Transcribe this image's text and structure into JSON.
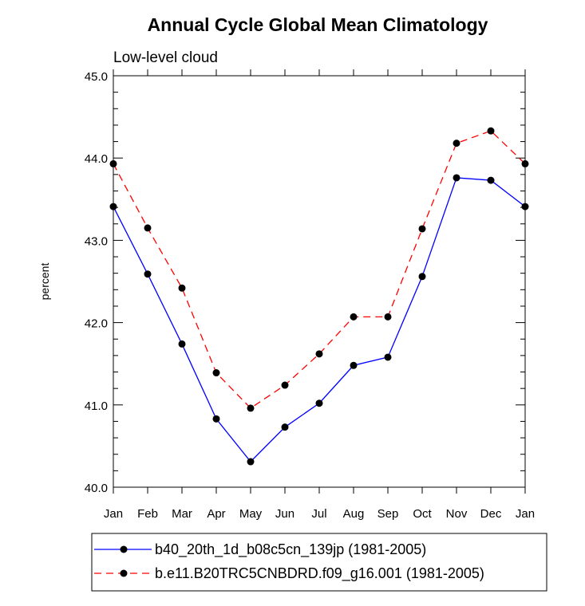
{
  "chart_data": {
    "type": "line",
    "title": "Annual Cycle Global Mean Climatology",
    "subtitle": "Low-level cloud",
    "xlabel": "",
    "ylabel": "percent",
    "ylim": [
      40.0,
      45.0
    ],
    "yticks": [
      "40.0",
      "41.0",
      "42.0",
      "43.0",
      "44.0",
      "45.0"
    ],
    "categories": [
      "Jan",
      "Feb",
      "Mar",
      "Apr",
      "May",
      "Jun",
      "Jul",
      "Aug",
      "Sep",
      "Oct",
      "Nov",
      "Dec",
      "Jan"
    ],
    "legend_position": "bottom",
    "series": [
      {
        "name": "b40_20th_1d_b08c5cn_139jp (1981-2005)",
        "color": "#0000ff",
        "line_style": "solid",
        "values": [
          43.41,
          42.59,
          41.74,
          40.83,
          40.31,
          40.73,
          41.02,
          41.48,
          41.58,
          42.56,
          43.76,
          43.73,
          43.41
        ]
      },
      {
        "name": "b.e11.B20TRC5CNBDRD.f09_g16.001 (1981-2005)",
        "color": "#ff0000",
        "line_style": "dashed",
        "values": [
          43.93,
          43.15,
          42.42,
          41.39,
          40.96,
          41.24,
          41.62,
          42.07,
          42.07,
          43.14,
          44.18,
          44.33,
          43.93
        ]
      }
    ]
  }
}
